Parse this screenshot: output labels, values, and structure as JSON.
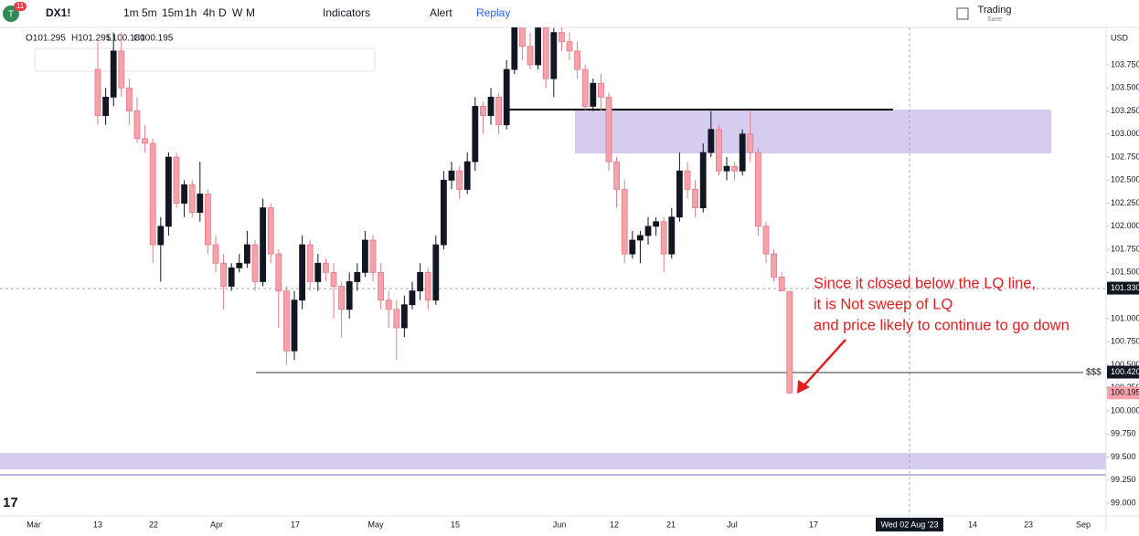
{
  "toolbar": {
    "badge": "11",
    "symbol": "DX1!",
    "intervals": [
      "1m",
      "5m",
      "15m",
      "1h",
      "4h",
      "D",
      "W",
      "M"
    ],
    "indicators": "Indicators",
    "alert": "Alert",
    "replay": "Replay",
    "trading": "Trading",
    "save": "Save"
  },
  "ohlc_legend": [
    "O101.295",
    "H101.295",
    "L100.180",
    "C100.195"
  ],
  "chart_data": {
    "type": "candlestick",
    "currency": "USD",
    "ylim": [
      99.0,
      103.75
    ],
    "yticks": [
      {
        "value": 103.75,
        "label": "103.750"
      },
      {
        "value": 103.5,
        "label": "103.500"
      },
      {
        "value": 103.25,
        "label": "103.250"
      },
      {
        "value": 103.0,
        "label": "103.000"
      },
      {
        "value": 102.75,
        "label": "102.750"
      },
      {
        "value": 102.5,
        "label": "102.500"
      },
      {
        "value": 102.25,
        "label": "102.250"
      },
      {
        "value": 102.0,
        "label": "102.000"
      },
      {
        "value": 101.75,
        "label": "101.750"
      },
      {
        "value": 101.5,
        "label": "101.500"
      },
      {
        "value": 101.0,
        "label": "101.000"
      },
      {
        "value": 100.75,
        "label": "100.750"
      },
      {
        "value": 100.5,
        "label": "100.500"
      },
      {
        "value": 100.25,
        "label": "100.250"
      },
      {
        "value": 100.0,
        "label": "100.000"
      },
      {
        "value": 99.75,
        "label": "99.750"
      },
      {
        "value": 99.5,
        "label": "99.500"
      },
      {
        "value": 99.25,
        "label": "99.250"
      },
      {
        "value": 99.0,
        "label": "99.000"
      }
    ],
    "badges": [
      {
        "value": 101.33,
        "label": "101.330"
      },
      {
        "value": 100.42,
        "label": "100.420"
      },
      {
        "value": 100.195,
        "label": "100.195"
      }
    ],
    "liquidity_label": "$$$",
    "x_labels": [
      "Mar",
      "13",
      "22",
      "Apr",
      "17",
      "May",
      "15",
      "Jun",
      "12",
      "21",
      "Jul",
      "17",
      "Wed 02 Aug '23",
      "14",
      "23",
      "Sep"
    ],
    "candles": [
      [
        103.7,
        104.0,
        103.1,
        103.2
      ],
      [
        103.2,
        103.5,
        103.1,
        103.4
      ],
      [
        103.4,
        104.1,
        103.3,
        103.9
      ],
      [
        103.9,
        104.1,
        103.4,
        103.5
      ],
      [
        103.5,
        103.6,
        103.1,
        103.25
      ],
      [
        103.25,
        103.4,
        102.9,
        102.95
      ],
      [
        102.95,
        103.1,
        102.8,
        102.9
      ],
      [
        102.9,
        102.95,
        101.6,
        101.8
      ],
      [
        101.8,
        102.1,
        101.4,
        102.0
      ],
      [
        102.0,
        102.8,
        101.9,
        102.75
      ],
      [
        102.75,
        102.8,
        102.2,
        102.25
      ],
      [
        102.25,
        102.5,
        102.1,
        102.45
      ],
      [
        102.45,
        102.5,
        102.1,
        102.15
      ],
      [
        102.15,
        102.7,
        102.05,
        102.35
      ],
      [
        102.35,
        102.4,
        101.7,
        101.8
      ],
      [
        101.8,
        101.9,
        101.5,
        101.6
      ],
      [
        101.6,
        101.7,
        101.1,
        101.35
      ],
      [
        101.35,
        101.6,
        101.3,
        101.55
      ],
      [
        101.55,
        101.7,
        101.5,
        101.6
      ],
      [
        101.6,
        101.95,
        101.55,
        101.8
      ],
      [
        101.8,
        101.85,
        101.3,
        101.4
      ],
      [
        101.4,
        102.3,
        101.35,
        102.2
      ],
      [
        102.2,
        102.25,
        101.6,
        101.7
      ],
      [
        101.7,
        101.75,
        100.9,
        101.3
      ],
      [
        101.3,
        101.35,
        100.5,
        100.65
      ],
      [
        100.65,
        101.3,
        100.55,
        101.2
      ],
      [
        101.2,
        101.9,
        101.1,
        101.8
      ],
      [
        101.8,
        101.85,
        101.3,
        101.4
      ],
      [
        101.4,
        101.7,
        101.3,
        101.6
      ],
      [
        101.6,
        101.65,
        101.4,
        101.5
      ],
      [
        101.5,
        101.6,
        101.0,
        101.35
      ],
      [
        101.35,
        101.4,
        100.8,
        101.1
      ],
      [
        101.1,
        101.5,
        101.0,
        101.4
      ],
      [
        101.4,
        101.6,
        101.3,
        101.5
      ],
      [
        101.5,
        101.95,
        101.45,
        101.85
      ],
      [
        101.85,
        101.9,
        101.4,
        101.5
      ],
      [
        101.5,
        101.6,
        101.1,
        101.2
      ],
      [
        101.2,
        101.3,
        100.9,
        101.1
      ],
      [
        101.1,
        101.2,
        100.55,
        100.9
      ],
      [
        100.9,
        101.25,
        100.8,
        101.15
      ],
      [
        101.15,
        101.4,
        101.1,
        101.3
      ],
      [
        101.3,
        101.6,
        101.2,
        101.5
      ],
      [
        101.5,
        101.55,
        101.1,
        101.2
      ],
      [
        101.2,
        101.9,
        101.15,
        101.8
      ],
      [
        101.8,
        102.6,
        101.75,
        102.5
      ],
      [
        102.5,
        102.7,
        102.4,
        102.6
      ],
      [
        102.6,
        102.65,
        102.3,
        102.4
      ],
      [
        102.4,
        102.8,
        102.35,
        102.7
      ],
      [
        102.7,
        103.4,
        102.6,
        103.3
      ],
      [
        103.3,
        103.35,
        103.0,
        103.2
      ],
      [
        103.2,
        103.5,
        103.1,
        103.4
      ],
      [
        103.4,
        103.45,
        103.0,
        103.1
      ],
      [
        103.1,
        103.8,
        103.05,
        103.7
      ],
      [
        103.7,
        104.4,
        103.65,
        104.3
      ],
      [
        104.3,
        104.35,
        103.8,
        103.95
      ],
      [
        103.95,
        104.1,
        103.7,
        103.75
      ],
      [
        103.75,
        104.2,
        103.7,
        104.15
      ],
      [
        104.15,
        104.2,
        103.5,
        103.6
      ],
      [
        103.6,
        104.15,
        103.4,
        104.1
      ],
      [
        104.1,
        104.2,
        103.9,
        104.0
      ],
      [
        104.0,
        104.1,
        103.8,
        103.9
      ],
      [
        103.9,
        104.0,
        103.6,
        103.7
      ],
      [
        103.7,
        103.75,
        103.25,
        103.3
      ],
      [
        103.3,
        103.6,
        103.25,
        103.55
      ],
      [
        103.55,
        103.65,
        103.25,
        103.4
      ],
      [
        103.4,
        103.45,
        102.6,
        102.7
      ],
      [
        102.7,
        102.75,
        102.2,
        102.4
      ],
      [
        102.4,
        102.5,
        101.6,
        101.7
      ],
      [
        101.7,
        101.95,
        101.65,
        101.85
      ],
      [
        101.85,
        101.95,
        101.6,
        101.9
      ],
      [
        101.9,
        102.1,
        101.8,
        102.0
      ],
      [
        102.0,
        102.1,
        101.9,
        102.05
      ],
      [
        102.05,
        102.1,
        101.5,
        101.7
      ],
      [
        101.7,
        102.2,
        101.65,
        102.1
      ],
      [
        102.1,
        102.8,
        102.05,
        102.6
      ],
      [
        102.6,
        102.7,
        102.3,
        102.4
      ],
      [
        102.4,
        102.5,
        102.1,
        102.2
      ],
      [
        102.2,
        102.9,
        102.15,
        102.8
      ],
      [
        102.8,
        103.25,
        102.75,
        103.05
      ],
      [
        103.05,
        103.1,
        102.55,
        102.6
      ],
      [
        102.6,
        102.75,
        102.5,
        102.65
      ],
      [
        102.65,
        102.7,
        102.5,
        102.6
      ],
      [
        102.6,
        103.05,
        102.55,
        103.0
      ],
      [
        103.0,
        103.25,
        102.7,
        102.8
      ],
      [
        102.8,
        102.85,
        101.9,
        102.0
      ],
      [
        102.0,
        102.05,
        101.6,
        101.7
      ],
      [
        101.7,
        101.75,
        101.4,
        101.45
      ],
      [
        101.45,
        101.5,
        101.3,
        101.3
      ],
      [
        101.295,
        101.295,
        100.18,
        100.195
      ]
    ],
    "annotation": [
      "Since it closed below the LQ line,",
      "it is Not sweep of LQ",
      "and price likely to continue to go down"
    ]
  }
}
